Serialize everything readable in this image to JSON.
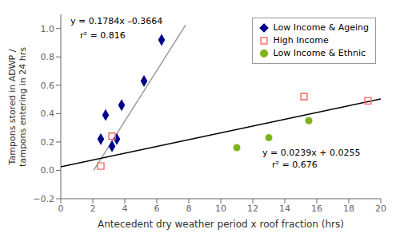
{
  "chart_data": {
    "type": "scatter",
    "xlabel": "Antecedent dry weather period x roof fraction (hrs)",
    "ylabel": "Tampons stored in ADWP /\ntampons entering in 24 hrs",
    "series": [
      {
        "name": "Low Income & Ageing",
        "type": "scatter",
        "marker": "diamond",
        "color": "#00008B",
        "x": [
          2.5,
          2.8,
          3.2,
          3.5,
          3.8,
          5.2,
          6.3
        ],
        "values": [
          0.22,
          0.39,
          0.17,
          0.22,
          0.46,
          0.63,
          0.92
        ]
      },
      {
        "name": "High Income",
        "type": "scatter",
        "marker": "open_square",
        "color": "#FF6666",
        "x": [
          2.5,
          3.2,
          15.2,
          19.2
        ],
        "values": [
          0.03,
          0.24,
          0.52,
          0.49
        ]
      },
      {
        "name": "Low Income & Ethnic",
        "type": "scatter",
        "marker": "circle",
        "color": "#7CB518",
        "x": [
          11.0,
          13.0,
          15.5
        ],
        "values": [
          0.16,
          0.23,
          0.35
        ]
      },
      {
        "type": "line",
        "color": "#999999",
        "x": [
          2.05,
          7.8
        ],
        "values": [
          -0.00068,
          1.02512
        ]
      },
      {
        "type": "line",
        "color": "#000000",
        "x": [
          0.0,
          20.0
        ],
        "values": [
          0.0255,
          0.5035
        ]
      }
    ],
    "annotations": [
      "y = 0.1784x –0.3664",
      "r² = 0.816",
      "y = 0.0239x + 0.0255",
      "r² = 0.676"
    ],
    "xlim": [
      0,
      20
    ],
    "ylim": [
      -0.2,
      1.1
    ],
    "xticks": [
      0,
      2,
      4,
      6,
      8,
      10,
      12,
      14,
      16,
      18,
      20
    ],
    "yticks": [
      {
        "value": -0.2,
        "label": "−0.2"
      },
      {
        "value": 0.0,
        "label": "0.0"
      },
      {
        "value": 0.2,
        "label": "0.2"
      },
      {
        "value": 0.4,
        "label": "0.4"
      },
      {
        "value": 0.6,
        "label": "0.6"
      },
      {
        "value": 0.8,
        "label": "0.8"
      },
      {
        "value": 1.0,
        "label": "1.0"
      }
    ],
    "grid": false,
    "legend": "upper right"
  }
}
